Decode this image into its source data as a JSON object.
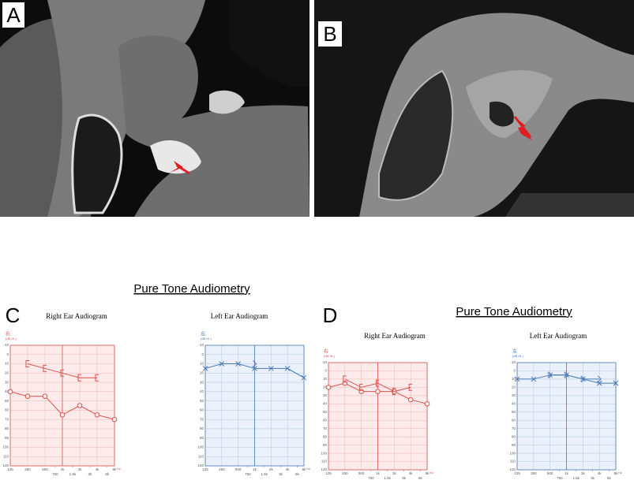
{
  "panel_labels": [
    "A",
    "B",
    "C",
    "D"
  ],
  "headings": [
    "Pure Tone Audiometry",
    "Pure Tone Audiometry"
  ],
  "chart_data": [
    {
      "type": "line",
      "title": "Right Ear Audiogram",
      "ylabel": "右",
      "yunit": "(dB HL)",
      "xunit": "Hz",
      "color": "#d9534f",
      "background": "#fcebea",
      "grid": true,
      "xscale": "log",
      "y_inverted": true,
      "x": [
        125,
        250,
        500,
        1000,
        2000,
        4000,
        8000
      ],
      "xlim": [
        125,
        8000
      ],
      "xticks": [
        125,
        250,
        500,
        750,
        {
          "value": 1000,
          "label": "1k"
        },
        {
          "value": 1500,
          "label": "1.5k"
        },
        {
          "value": 2000,
          "label": "2k"
        },
        {
          "value": 3000,
          "label": "3k"
        },
        {
          "value": 4000,
          "label": "4k"
        },
        {
          "value": 6000,
          "label": "6k"
        },
        {
          "value": 8000,
          "label": "8k"
        }
      ],
      "ylim": [
        -10,
        120
      ],
      "yticks": [
        -10,
        0,
        10,
        20,
        30,
        40,
        50,
        60,
        70,
        80,
        90,
        100,
        110,
        120
      ],
      "series": [
        {
          "marker": "circle",
          "values": [
            40,
            45,
            45,
            65,
            55,
            65,
            70
          ]
        },
        {
          "marker": "bracket",
          "values": [
            null,
            10,
            15,
            20,
            25,
            25,
            null
          ]
        }
      ]
    },
    {
      "type": "line",
      "title": "Left Ear Audiogram",
      "ylabel": "左",
      "yunit": "(dB HL)",
      "xunit": "Hz",
      "color": "#4a78b8",
      "background": "#eaf1fa",
      "grid": true,
      "xscale": "log",
      "y_inverted": true,
      "x": [
        125,
        250,
        500,
        1000,
        2000,
        4000,
        8000
      ],
      "xlim": [
        125,
        8000
      ],
      "xticks": [
        125,
        250,
        500,
        750,
        {
          "value": 1000,
          "label": "1k"
        },
        {
          "value": 1500,
          "label": "1.5k"
        },
        {
          "value": 2000,
          "label": "2k"
        },
        {
          "value": 3000,
          "label": "3k"
        },
        {
          "value": 4000,
          "label": "4k"
        },
        {
          "value": 6000,
          "label": "6k"
        },
        {
          "value": 8000,
          "label": "8k"
        }
      ],
      "ylim": [
        -10,
        120
      ],
      "yticks": [
        -10,
        0,
        10,
        20,
        30,
        40,
        50,
        60,
        70,
        80,
        90,
        100,
        110,
        120
      ],
      "series": [
        {
          "marker": "cross",
          "values": [
            15,
            10,
            10,
            15,
            15,
            15,
            25
          ]
        },
        {
          "marker": "angle",
          "values": [
            null,
            null,
            null,
            10,
            null,
            null,
            null
          ]
        }
      ]
    },
    {
      "type": "line",
      "title": "Right Ear Audiogram",
      "ylabel": "右",
      "yunit": "(dB HL)",
      "xunit": "Hz",
      "color": "#d9534f",
      "background": "#fcebea",
      "grid": true,
      "xscale": "log",
      "y_inverted": true,
      "x": [
        125,
        250,
        500,
        1000,
        2000,
        4000,
        8000
      ],
      "xlim": [
        125,
        8000
      ],
      "xticks": [
        125,
        250,
        500,
        750,
        {
          "value": 1000,
          "label": "1k"
        },
        {
          "value": 1500,
          "label": "1.5k"
        },
        {
          "value": 2000,
          "label": "2k"
        },
        {
          "value": 3000,
          "label": "3k"
        },
        {
          "value": 4000,
          "label": "4k"
        },
        {
          "value": 6000,
          "label": "6k"
        },
        {
          "value": 8000,
          "label": "8k"
        }
      ],
      "ylim": [
        -10,
        120
      ],
      "yticks": [
        -10,
        0,
        10,
        20,
        30,
        40,
        50,
        60,
        70,
        80,
        90,
        100,
        110,
        120
      ],
      "series": [
        {
          "marker": "circle",
          "values": [
            20,
            15,
            25,
            25,
            25,
            35,
            40
          ]
        },
        {
          "marker": "bracket",
          "values": [
            null,
            10,
            20,
            15,
            25,
            20,
            null
          ]
        }
      ]
    },
    {
      "type": "line",
      "title": "Left Ear Audiogram",
      "ylabel": "左",
      "yunit": "(dB HL)",
      "xunit": "Hz",
      "color": "#4a78b8",
      "background": "#eaf1fa",
      "grid": true,
      "xscale": "log",
      "y_inverted": true,
      "x": [
        125,
        250,
        500,
        1000,
        2000,
        4000,
        8000
      ],
      "xlim": [
        125,
        8000
      ],
      "xticks": [
        125,
        250,
        500,
        750,
        {
          "value": 1000,
          "label": "1k"
        },
        {
          "value": 1500,
          "label": "1.5k"
        },
        {
          "value": 2000,
          "label": "2k"
        },
        {
          "value": 3000,
          "label": "3k"
        },
        {
          "value": 4000,
          "label": "4k"
        },
        {
          "value": 6000,
          "label": "6k"
        },
        {
          "value": 8000,
          "label": "8k"
        }
      ],
      "ylim": [
        -10,
        120
      ],
      "yticks": [
        -10,
        0,
        10,
        20,
        30,
        40,
        50,
        60,
        70,
        80,
        90,
        100,
        110,
        120
      ],
      "series": [
        {
          "marker": "cross",
          "values": [
            10,
            10,
            5,
            5,
            10,
            15,
            15
          ]
        },
        {
          "marker": "angle",
          "values": [
            null,
            null,
            5,
            5,
            10,
            10,
            null
          ]
        }
      ]
    }
  ]
}
